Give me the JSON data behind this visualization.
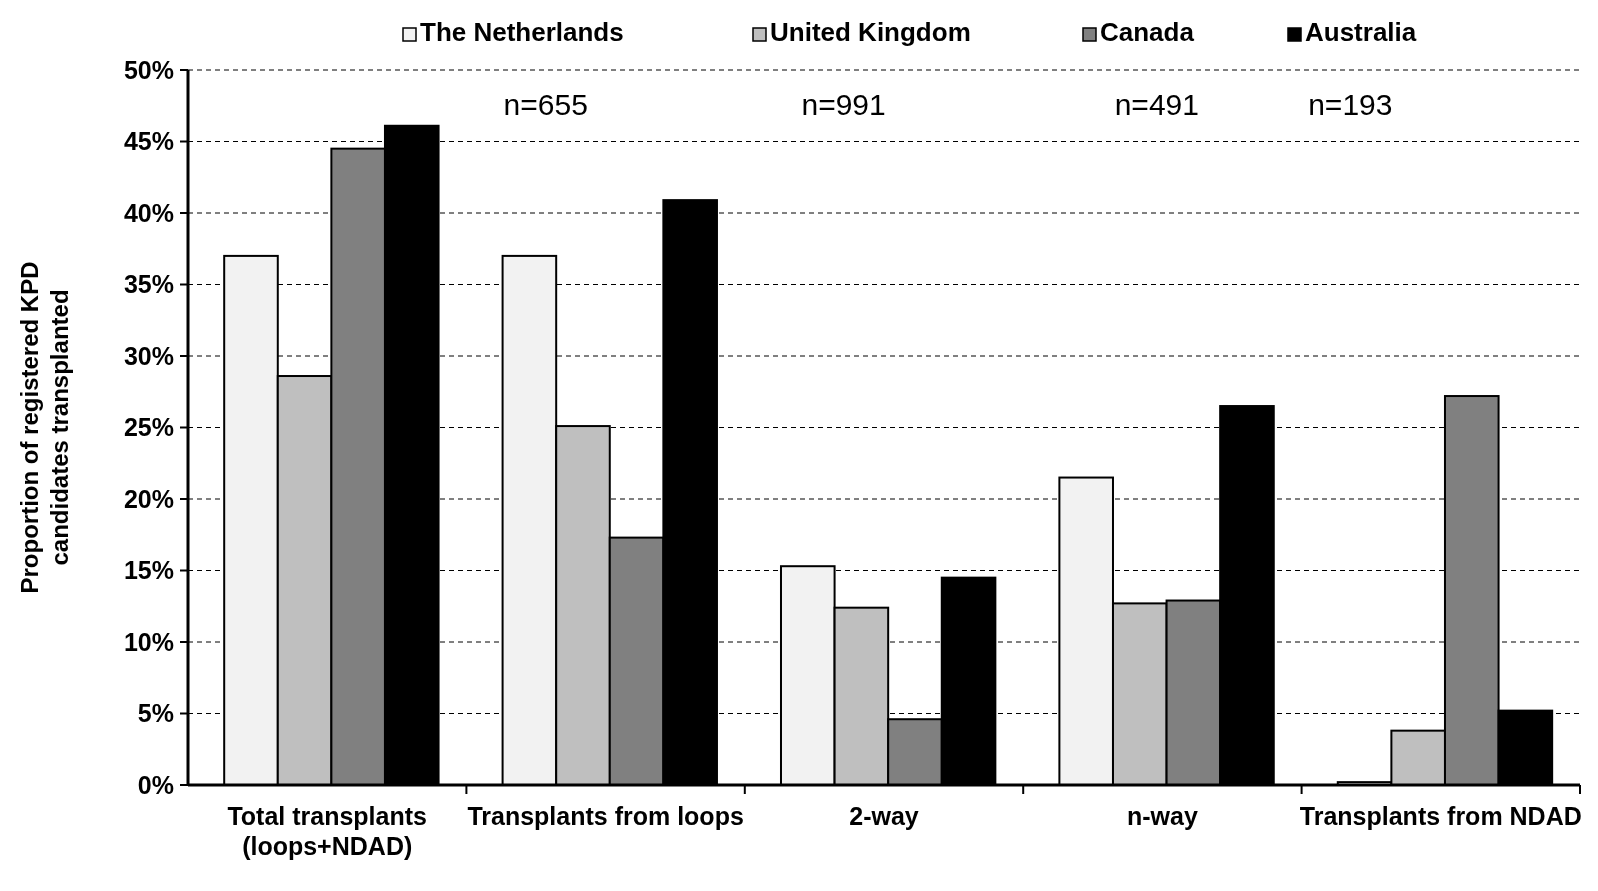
{
  "chart_data": {
    "type": "bar",
    "categories": [
      "Total transplants (loops+NDAD)",
      "Transplants from loops",
      "2-way",
      "n-way",
      "Transplants from NDAD"
    ],
    "series": [
      {
        "name": "The Netherlands",
        "color": "#f2f2f2",
        "values": [
          37,
          37,
          15.3,
          21.5,
          0.2
        ]
      },
      {
        "name": "United Kingdom",
        "color": "#bfbfbf",
        "values": [
          28.6,
          25.1,
          12.4,
          12.7,
          3.8
        ]
      },
      {
        "name": "Canada",
        "color": "#808080",
        "values": [
          44.5,
          17.3,
          4.6,
          12.9,
          27.2
        ]
      },
      {
        "name": "Australia",
        "color": "#000000",
        "values": [
          46.1,
          40.9,
          14.5,
          26.5,
          5.2
        ]
      }
    ],
    "ylabel": "Proportion of registered KPD candidates transplanted",
    "ylim": [
      0,
      50
    ],
    "yticks": [
      {
        "value": 0,
        "label": "0%"
      },
      {
        "value": 5,
        "label": "5%"
      },
      {
        "value": 10,
        "label": "10%"
      },
      {
        "value": 15,
        "label": "15%"
      },
      {
        "value": 20,
        "label": "20%"
      },
      {
        "value": 25,
        "label": "25%"
      },
      {
        "value": 30,
        "label": "30%"
      },
      {
        "value": 35,
        "label": "35%"
      },
      {
        "value": 40,
        "label": "40%"
      },
      {
        "value": 45,
        "label": "45%"
      },
      {
        "value": 50,
        "label": "50%"
      }
    ],
    "grid": "y",
    "legend": "top",
    "annotations": [
      "n=655",
      "n=991",
      "n=491",
      "n=193"
    ]
  }
}
